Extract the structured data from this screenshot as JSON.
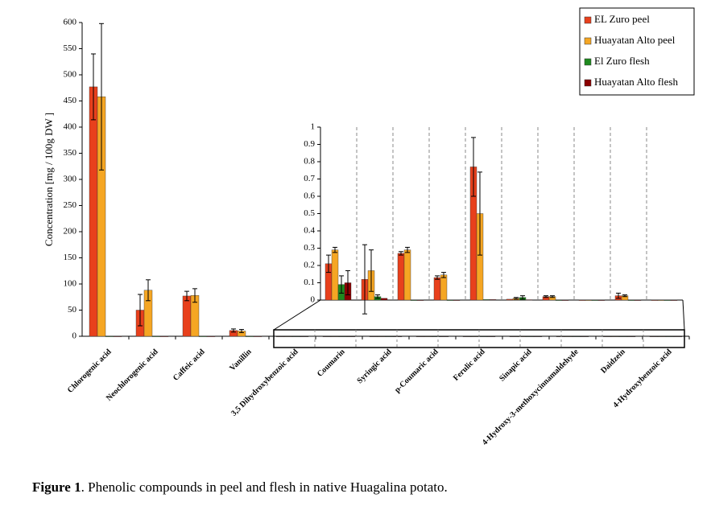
{
  "chart_data": [
    {
      "type": "bar",
      "ylabel": "Concentration [mg / 100g DW ]",
      "categories": [
        "Chlorogenic acid",
        "Neochlorogenic acid",
        "Caffeic acid",
        "Vanillin",
        "3,5 Dihydroxybenzoic acid",
        "Coumarin",
        "Syringic acid",
        "p-Coumaric acid",
        "Ferulic acid",
        "Sinapic acid",
        "4-Hydroxy-3-methoxycinnamaldehyde",
        "Daidzein",
        "4-Hydroxybenzoic  acid"
      ],
      "series": [
        {
          "name": "EL Zuro peel",
          "color": "#e8401c",
          "values": [
            477,
            50,
            77,
            11,
            0,
            0,
            0,
            0,
            0,
            0,
            0,
            0,
            0
          ],
          "errors": [
            63,
            30,
            9,
            3,
            0,
            0,
            0,
            0,
            0,
            0,
            0,
            0,
            0
          ]
        },
        {
          "name": "Huayatan Alto peel",
          "color": "#f5a623",
          "values": [
            458,
            88,
            78,
            10,
            0,
            0,
            0,
            0,
            0,
            0,
            0,
            0,
            0
          ],
          "errors": [
            140,
            20,
            13,
            3,
            0,
            0,
            0,
            0,
            0,
            0,
            0,
            0,
            0
          ]
        },
        {
          "name": "El Zuro flesh",
          "color": "#1e8a1e",
          "values": [
            0,
            0,
            0,
            0,
            0,
            0,
            0,
            0,
            0,
            0,
            0,
            0,
            0
          ],
          "errors": [
            0,
            0,
            0,
            0,
            0,
            0,
            0,
            0,
            0,
            0,
            0,
            0,
            0
          ]
        },
        {
          "name": "Huayatan Alto flesh",
          "color": "#8b0000",
          "values": [
            0,
            0,
            0,
            0,
            0,
            0,
            0,
            0,
            0,
            0,
            0,
            0,
            0
          ],
          "errors": [
            0,
            0,
            0,
            0,
            0,
            0,
            0,
            0,
            0,
            0,
            0,
            0,
            0
          ]
        }
      ],
      "ylim": [
        0,
        600
      ],
      "yticks": [
        0,
        50,
        100,
        150,
        200,
        250,
        300,
        350,
        400,
        450,
        500,
        550,
        600
      ],
      "legend": "upper right"
    },
    {
      "type": "bar",
      "series": [
        {
          "values": [
            0.21,
            0.12,
            0.27,
            0.13,
            0.77,
            0.005,
            0.02,
            0,
            0.025,
            0
          ],
          "errors": [
            0.05,
            0.2,
            0.01,
            0.01,
            0.17,
            0,
            0.005,
            0,
            0.015,
            0
          ]
        },
        {
          "values": [
            0.29,
            0.17,
            0.29,
            0.145,
            0.5,
            0.01,
            0.02,
            0,
            0.025,
            0
          ],
          "errors": [
            0.015,
            0.12,
            0.015,
            0.015,
            0.24,
            0.005,
            0.005,
            0,
            0.005,
            0
          ]
        },
        {
          "values": [
            0.09,
            0.02,
            0,
            0,
            0.003,
            0.015,
            0,
            0,
            0,
            0
          ],
          "errors": [
            0.05,
            0.01,
            0,
            0,
            0,
            0.01,
            0,
            0,
            0,
            0
          ]
        },
        {
          "values": [
            0.1,
            0.01,
            0,
            0,
            0.003,
            0.002,
            0,
            0,
            0,
            0
          ],
          "errors": [
            0.07,
            0,
            0,
            0,
            0,
            0,
            0,
            0,
            0,
            0
          ]
        }
      ],
      "ylim": [
        0,
        1
      ],
      "yticks": [
        0,
        0.1,
        0.2,
        0.3,
        0.4,
        0.5,
        0.6,
        0.7,
        0.8,
        0.9,
        1
      ]
    }
  ],
  "caption_label": "Figure 1",
  "caption": ". Phenolic compounds in peel and flesh in native Huagalina potato."
}
